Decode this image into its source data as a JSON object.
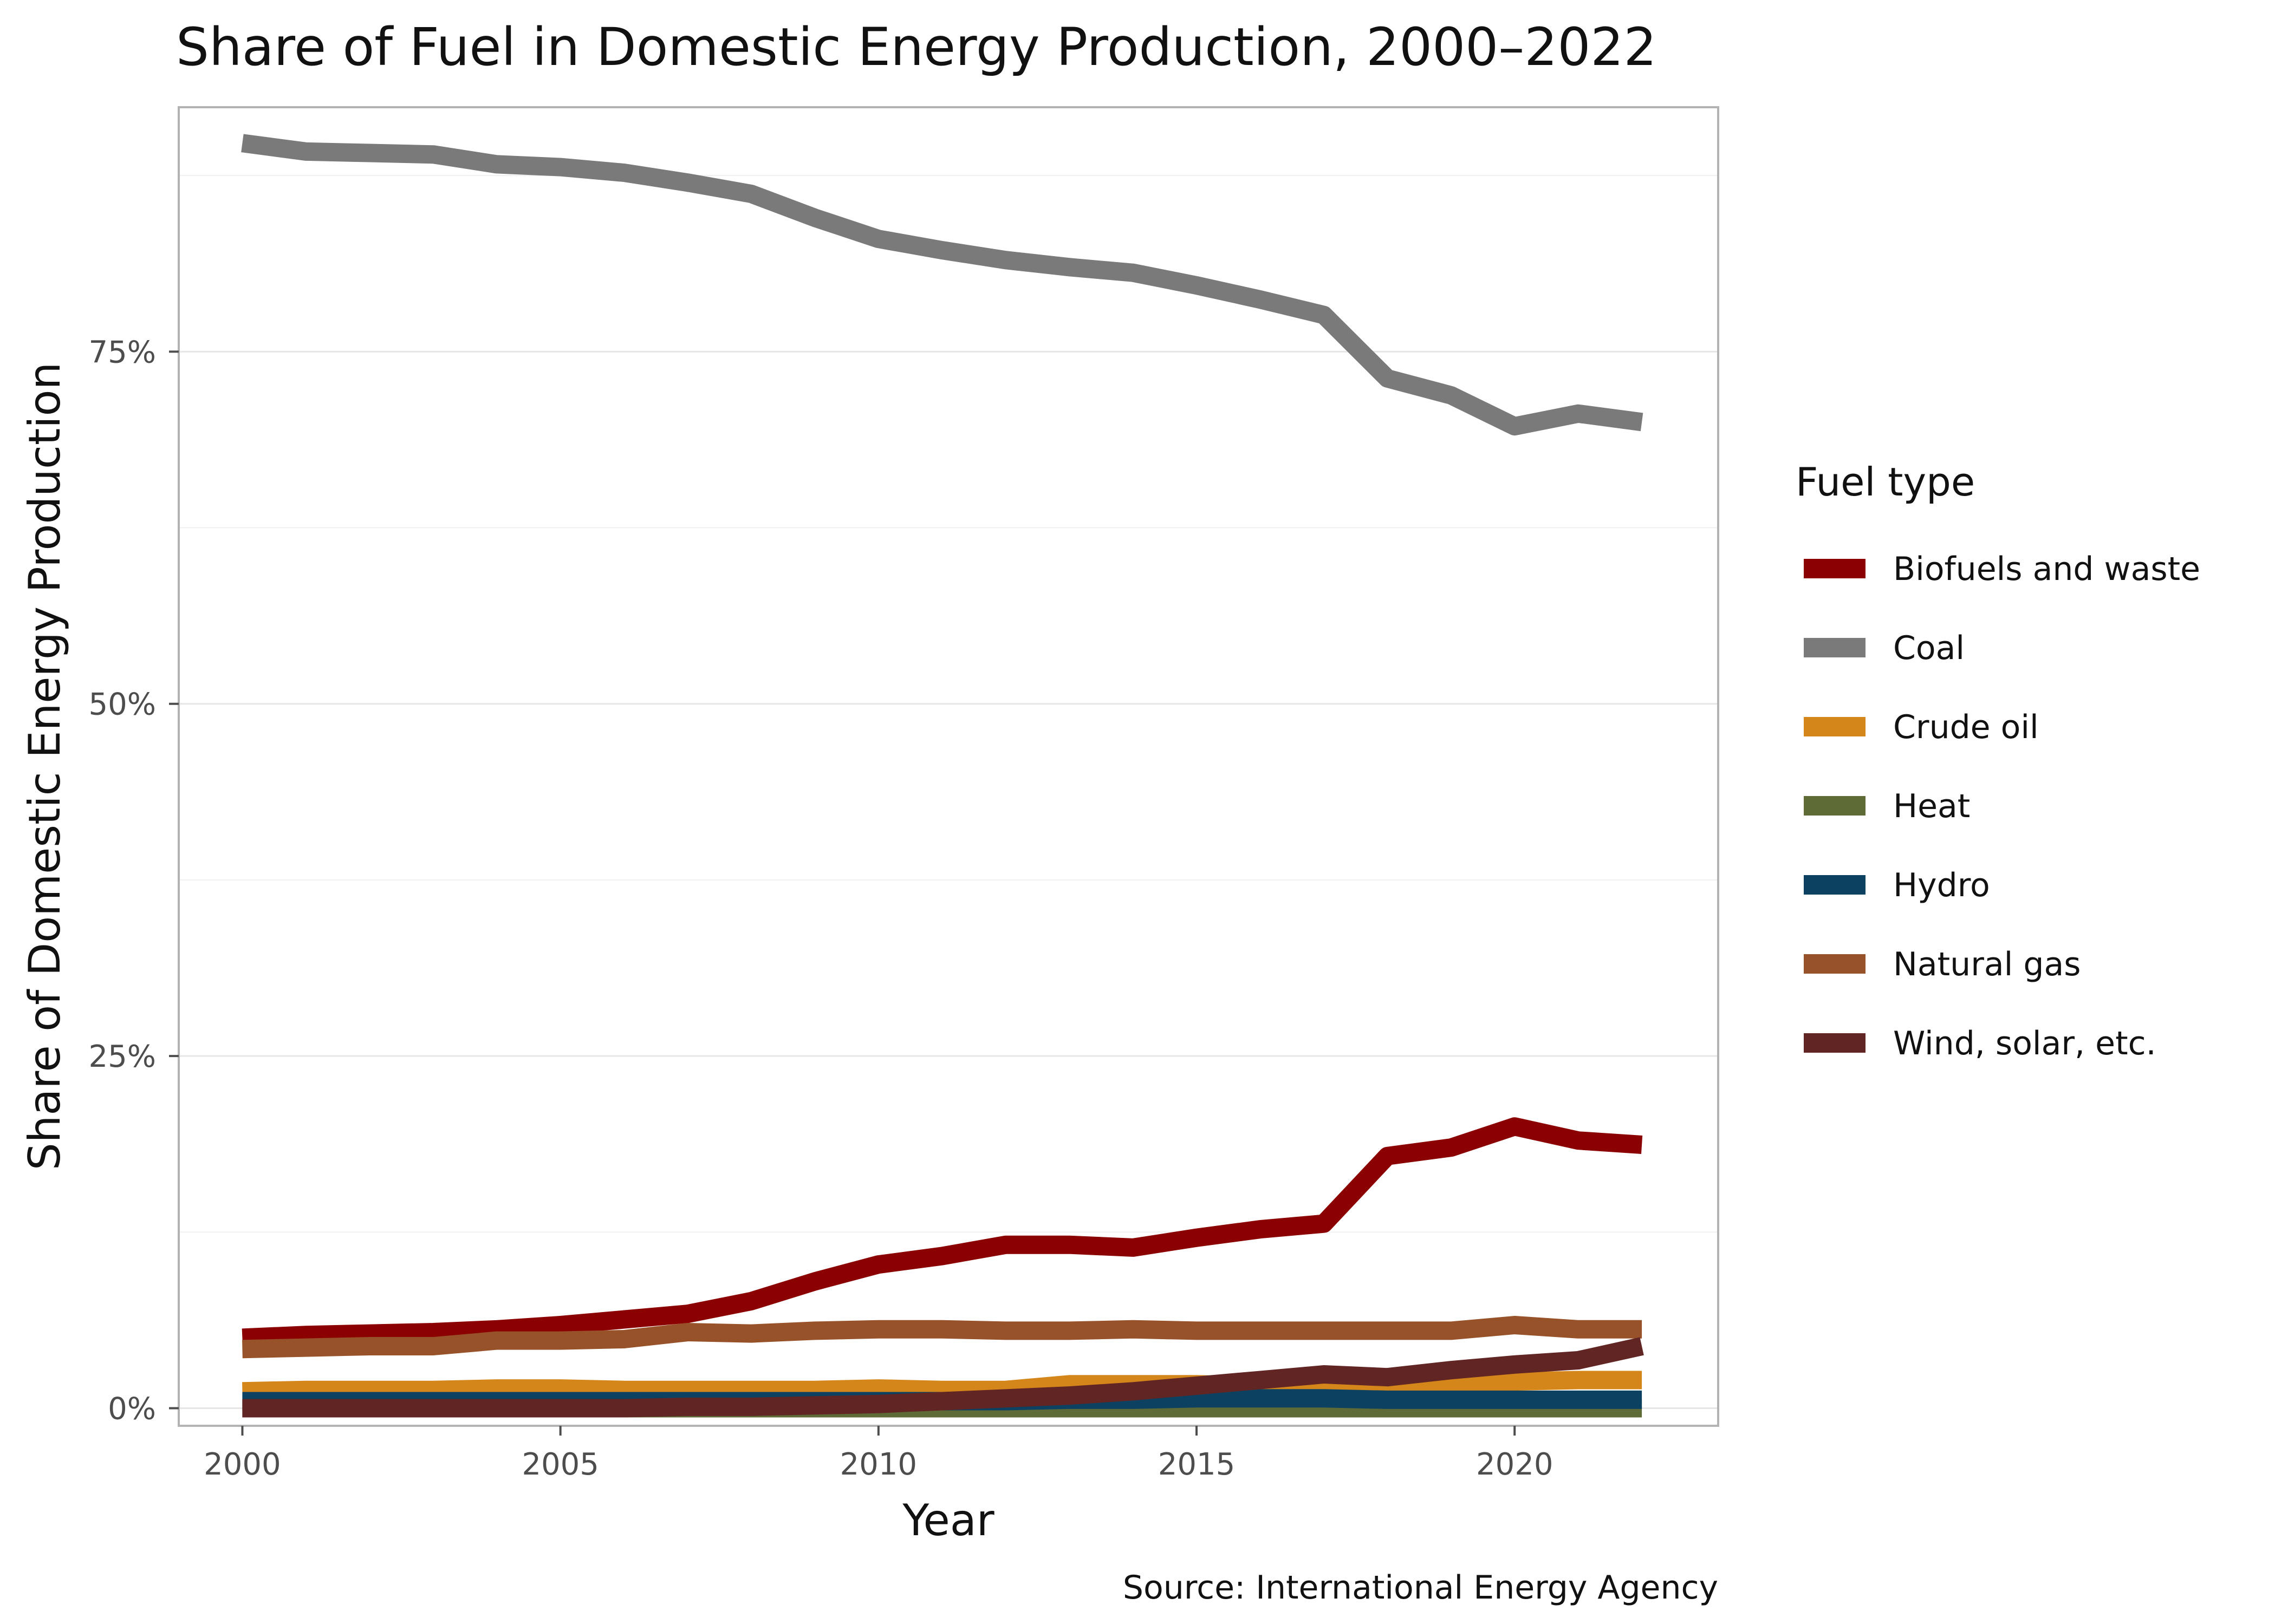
{
  "chart_data": {
    "type": "line",
    "title": "Share of Fuel in Domestic Energy Production, 2000–2022",
    "xlabel": "Year",
    "ylabel": "Share of Domestic Energy Production",
    "caption": "Source: International Energy Agency",
    "legend_title": "Fuel type",
    "legend_position": "right",
    "grid": true,
    "xlim": [
      1999.0,
      2023.2
    ],
    "ylim": [
      -0.0125,
      0.9235
    ],
    "x_ticks": [
      2000,
      2005,
      2010,
      2015,
      2020
    ],
    "x_tick_labels": [
      "2000",
      "2005",
      "2010",
      "2015",
      "2020"
    ],
    "y_ticks": [
      0,
      0.25,
      0.5,
      0.75
    ],
    "y_tick_labels": [
      "0%",
      "25%",
      "50%",
      "75%"
    ],
    "y_minor_ticks": [
      0.125,
      0.375,
      0.625,
      0.875
    ],
    "x": [
      2000,
      2001,
      2002,
      2003,
      2004,
      2005,
      2006,
      2007,
      2008,
      2009,
      2010,
      2011,
      2012,
      2013,
      2014,
      2015,
      2016,
      2017,
      2018,
      2019,
      2020,
      2021,
      2022
    ],
    "series": [
      {
        "name": "Biofuels and waste",
        "color": "#8b0000",
        "values": [
          0.05,
          0.052,
          0.053,
          0.054,
          0.056,
          0.059,
          0.063,
          0.067,
          0.076,
          0.09,
          0.102,
          0.108,
          0.116,
          0.116,
          0.114,
          0.121,
          0.127,
          0.131,
          0.179,
          0.185,
          0.2,
          0.19,
          0.187
        ]
      },
      {
        "name": "Coal",
        "color": "#7a7a7a",
        "values": [
          0.898,
          0.892,
          0.891,
          0.89,
          0.883,
          0.881,
          0.877,
          0.87,
          0.862,
          0.845,
          0.83,
          0.822,
          0.815,
          0.81,
          0.806,
          0.797,
          0.787,
          0.776,
          0.731,
          0.719,
          0.697,
          0.706,
          0.7
        ]
      },
      {
        "name": "Crude oil",
        "color": "#d4861a",
        "values": [
          0.012,
          0.013,
          0.013,
          0.013,
          0.014,
          0.014,
          0.013,
          0.013,
          0.013,
          0.013,
          0.014,
          0.013,
          0.013,
          0.017,
          0.017,
          0.017,
          0.016,
          0.016,
          0.016,
          0.018,
          0.019,
          0.02,
          0.02
        ]
      },
      {
        "name": "Heat",
        "color": "#5e6b36",
        "values": [
          0.0,
          0.0,
          0.0,
          0.0,
          0.0,
          0.0,
          0.0,
          0.0,
          0.0,
          0.0,
          0.0,
          0.0,
          0.0,
          0.0,
          0.0,
          0.0,
          0.0,
          0.0,
          0.0,
          0.0,
          0.0,
          0.0,
          0.0
        ]
      },
      {
        "name": "Hydro",
        "color": "#0d4161",
        "values": [
          0.005,
          0.005,
          0.005,
          0.005,
          0.005,
          0.005,
          0.005,
          0.005,
          0.005,
          0.005,
          0.005,
          0.005,
          0.005,
          0.006,
          0.006,
          0.007,
          0.007,
          0.007,
          0.006,
          0.006,
          0.006,
          0.006,
          0.006
        ]
      },
      {
        "name": "Natural gas",
        "color": "#98522a",
        "values": [
          0.042,
          0.043,
          0.044,
          0.044,
          0.048,
          0.048,
          0.049,
          0.054,
          0.053,
          0.055,
          0.056,
          0.056,
          0.055,
          0.055,
          0.056,
          0.055,
          0.055,
          0.055,
          0.055,
          0.055,
          0.059,
          0.056,
          0.056
        ]
      },
      {
        "name": "Wind, solar, etc.",
        "color": "#612624",
        "values": [
          0.0,
          0.0,
          0.0,
          0.0,
          0.0,
          0.0,
          0.0,
          0.001,
          0.001,
          0.002,
          0.003,
          0.005,
          0.007,
          0.009,
          0.012,
          0.016,
          0.02,
          0.024,
          0.022,
          0.027,
          0.031,
          0.034,
          0.044
        ]
      }
    ]
  }
}
